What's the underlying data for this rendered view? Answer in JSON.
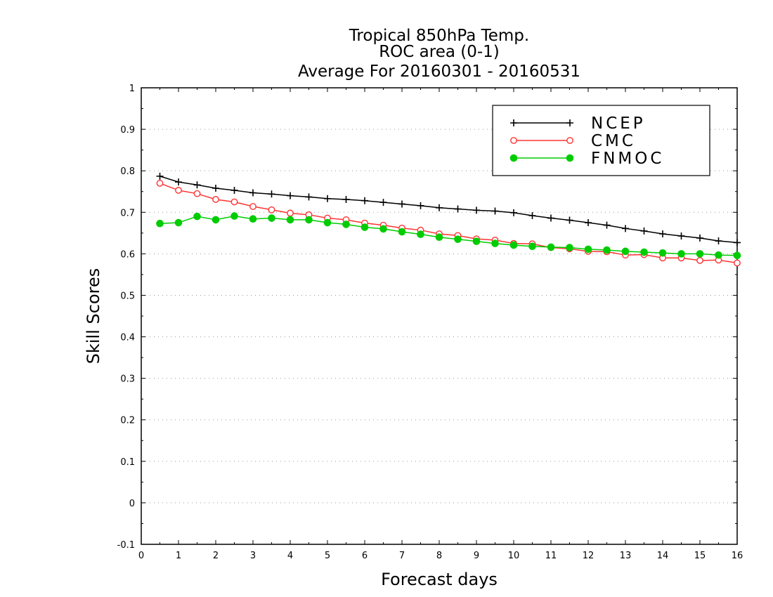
{
  "chart_data": {
    "type": "line",
    "title": [
      "Tropical 850hPa Temp.",
      "ROC area (0-1)",
      "Average For 20160301 - 20160531"
    ],
    "xlabel": "Forecast days",
    "ylabel": "Skill Scores",
    "xlim": [
      0,
      16
    ],
    "ylim": [
      -0.1,
      1
    ],
    "xticks": [
      0,
      1,
      2,
      3,
      4,
      5,
      6,
      7,
      8,
      9,
      10,
      11,
      12,
      13,
      14,
      15,
      16
    ],
    "yticks": [
      -0.1,
      0,
      0.1,
      0.2,
      0.3,
      0.4,
      0.5,
      0.6,
      0.7,
      0.8,
      0.9,
      1
    ],
    "ytick_labels": [
      "-0.1",
      "0",
      "0.1",
      "0.2",
      "0.3",
      "0.4",
      "0.5",
      "0.6",
      "0.7",
      "0.8",
      "0.9",
      "1"
    ],
    "grid": true,
    "legend_position": "top-right",
    "x": [
      0.5,
      1,
      1.5,
      2,
      2.5,
      3,
      3.5,
      4,
      4.5,
      5,
      5.5,
      6,
      6.5,
      7,
      7.5,
      8,
      8.5,
      9,
      9.5,
      10,
      10.5,
      11,
      11.5,
      12,
      12.5,
      13,
      13.5,
      14,
      14.5,
      15,
      15.5,
      16
    ],
    "series": [
      {
        "name": "NCEP",
        "color": "#000000",
        "marker": "plus",
        "values": [
          0.787,
          0.773,
          0.766,
          0.758,
          0.753,
          0.747,
          0.744,
          0.74,
          0.737,
          0.733,
          0.731,
          0.728,
          0.724,
          0.72,
          0.716,
          0.711,
          0.708,
          0.705,
          0.703,
          0.699,
          0.692,
          0.686,
          0.681,
          0.675,
          0.669,
          0.661,
          0.655,
          0.648,
          0.643,
          0.638,
          0.631,
          0.627
        ]
      },
      {
        "name": "CMC",
        "color": "#ff3333",
        "marker": "open-circle",
        "values": [
          0.77,
          0.753,
          0.745,
          0.731,
          0.725,
          0.714,
          0.706,
          0.698,
          0.694,
          0.686,
          0.682,
          0.674,
          0.669,
          0.662,
          0.657,
          0.648,
          0.644,
          0.636,
          0.633,
          0.625,
          0.624,
          0.615,
          0.612,
          0.606,
          0.605,
          0.597,
          0.598,
          0.59,
          0.59,
          0.584,
          0.585,
          0.578
        ]
      },
      {
        "name": "FNMOC",
        "color": "#00cc00",
        "marker": "filled-circle",
        "values": [
          0.673,
          0.675,
          0.69,
          0.682,
          0.691,
          0.684,
          0.686,
          0.682,
          0.682,
          0.675,
          0.671,
          0.664,
          0.66,
          0.653,
          0.647,
          0.64,
          0.635,
          0.63,
          0.625,
          0.621,
          0.618,
          0.616,
          0.615,
          0.611,
          0.609,
          0.606,
          0.604,
          0.602,
          0.6,
          0.6,
          0.597,
          0.596
        ]
      }
    ]
  }
}
